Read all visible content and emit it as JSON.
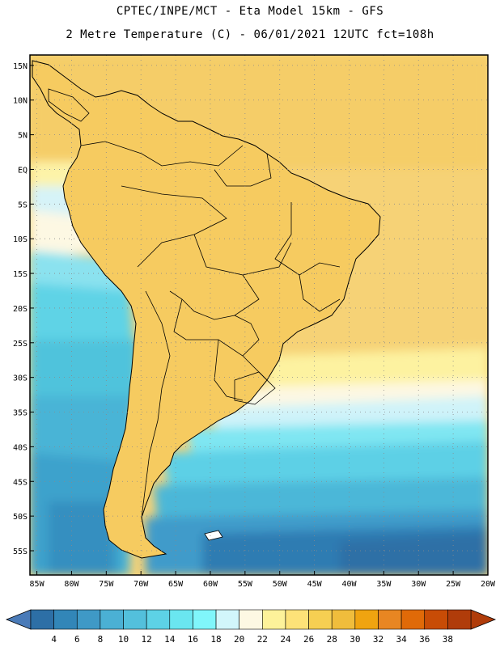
{
  "header": {
    "line1": "CPTEC/INPE/MCT  -   Eta Model 15km  -  GFS",
    "line2": "2 Metre Temperature (C) - 06/01/2021 12UTC fct=108h"
  },
  "map": {
    "region": "South America",
    "lat_labels": [
      "15N",
      "10N",
      "5N",
      "EQ",
      "5S",
      "10S",
      "15S",
      "20S",
      "25S",
      "30S",
      "35S",
      "40S",
      "45S",
      "50S",
      "55S"
    ],
    "lat_values": [
      15,
      10,
      5,
      0,
      -5,
      -10,
      -15,
      -20,
      -25,
      -30,
      -35,
      -40,
      -45,
      -50,
      -55
    ],
    "lon_labels": [
      "85W",
      "80W",
      "75W",
      "70W",
      "65W",
      "60W",
      "55W",
      "50W",
      "45W",
      "40W",
      "35W",
      "30W",
      "25W",
      "20W"
    ],
    "lon_values": [
      -85,
      -80,
      -75,
      -70,
      -65,
      -60,
      -55,
      -50,
      -45,
      -40,
      -35,
      -30,
      -25,
      -20
    ],
    "extent": {
      "lon_min": -86,
      "lon_max": -20,
      "lat_min": -58.5,
      "lat_max": 16.5
    },
    "grid": "dotted"
  },
  "colorbar": {
    "labels": [
      "4",
      "6",
      "8",
      "10",
      "12",
      "14",
      "16",
      "18",
      "20",
      "22",
      "24",
      "26",
      "28",
      "30",
      "32",
      "34",
      "36",
      "38"
    ],
    "colors": [
      "#2d6fa6",
      "#3286b8",
      "#3f99c6",
      "#4bb0d4",
      "#53c0dc",
      "#5dd2e6",
      "#6ae6f0",
      "#80f6fb",
      "#d2f6fb",
      "#fdf8e3",
      "#fdf29a",
      "#fde278",
      "#f6cf52",
      "#f0bd3c",
      "#f0a410",
      "#e88622",
      "#e06a08",
      "#c84c06",
      "#b03c0a"
    ],
    "low_arrow_color": "#4a7bb8",
    "high_arrow_color": "#b03c0a"
  }
}
